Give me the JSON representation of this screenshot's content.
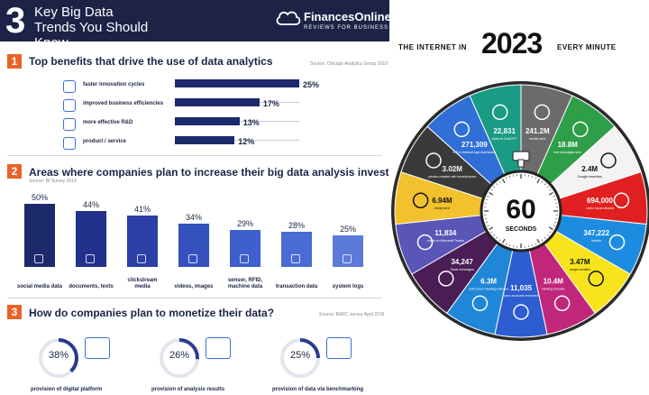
{
  "left": {
    "header": {
      "number": "3",
      "title": "Key Big Data Trends You Should Know"
    },
    "logo": {
      "name": "FinancesOnline",
      "tagline": "REVIEWS FOR BUSINESS"
    },
    "section1": {
      "num": "1",
      "title": "Top benefits that drive the use of data analytics",
      "source": "Source: Chicago Analytics Group 2019",
      "items": [
        {
          "label": "faster innovation cycles",
          "value": 25,
          "value_text": "25%",
          "icon": "cycle-icon"
        },
        {
          "label": "improved business efficiencies",
          "value": 17,
          "value_text": "17%",
          "icon": "gauge-icon"
        },
        {
          "label": "more effective R&D",
          "value": 13,
          "value_text": "13%",
          "icon": "flask-icon"
        },
        {
          "label": "product / service",
          "value": 12,
          "value_text": "12%",
          "icon": "target-icon"
        }
      ]
    },
    "section2": {
      "num": "2",
      "title": "Areas where companies plan to increase their big data analysis investment",
      "source": "Source: BI Survey 2019",
      "items": [
        {
          "label": "social media data",
          "value": 50,
          "value_text": "50%",
          "color": "#1c2a6b",
          "icon": "social-icon"
        },
        {
          "label": "documents, texts",
          "value": 44,
          "value_text": "44%",
          "color": "#22318a",
          "icon": "document-icon"
        },
        {
          "label": "clickstream media",
          "value": 41,
          "value_text": "41%",
          "color": "#2b3fa6",
          "icon": "cursor-icon"
        },
        {
          "label": "videos, images",
          "value": 34,
          "value_text": "34%",
          "color": "#3451bd",
          "icon": "video-icon"
        },
        {
          "label": "sensor, RFID, machine data",
          "value": 29,
          "value_text": "29%",
          "color": "#3e5fcc",
          "icon": "sensor-icon"
        },
        {
          "label": "transaction data",
          "value": 28,
          "value_text": "28%",
          "color": "#4a6bd4",
          "icon": "cart-icon"
        },
        {
          "label": "system logs",
          "value": 25,
          "value_text": "25%",
          "color": "#5b7ad9",
          "icon": "log-icon"
        }
      ]
    },
    "section3": {
      "num": "3",
      "title": "How do companies plan to monetize their data?",
      "source": "Source: BARC survey April 2019",
      "items": [
        {
          "label": "provision of digital platform",
          "value": 38,
          "value_text": "38%",
          "icon": "platform-icon"
        },
        {
          "label": "provision of analysis results",
          "value": 26,
          "value_text": "26%",
          "icon": "analysis-icon"
        },
        {
          "label": "provision of data via benchmarking",
          "value": 25,
          "value_text": "25%",
          "icon": "benchmark-icon"
        }
      ]
    },
    "colors": {
      "navy": "#1c2347",
      "accent": "#e8632a",
      "bar": "#1c2a6b",
      "donut": "#2a3b8f"
    }
  },
  "right": {
    "title_a": "THE INTERNET IN",
    "title_year": "2023",
    "title_b": "EVERY MINUTE",
    "center_value": "60",
    "center_label": "SECONDS",
    "segments": [
      {
        "value": "241.2M",
        "label": "emails sent",
        "color": "#6b6b6b",
        "icon": "mail-icon"
      },
      {
        "value": "18.8M",
        "label": "text messages sent",
        "color": "#2e9e48",
        "icon": "chat-icon"
      },
      {
        "value": "2.4M",
        "label": "Google searches",
        "color": "#f3f3f3",
        "icon": "google-icon"
      },
      {
        "value": "694,000",
        "label": "video hours viewed",
        "color": "#e02020",
        "icon": "youtube-icon"
      },
      {
        "value": "347,222",
        "label": "tweets",
        "color": "#1d8ce0",
        "icon": "twitter-icon"
      },
      {
        "value": "3.47M",
        "label": "snaps created",
        "color": "#f7e31b",
        "icon": "snapchat-icon"
      },
      {
        "value": "10.4M",
        "label": "viewing minutes",
        "color": "#c0267a",
        "icon": "instagram-icon"
      },
      {
        "value": "11,035",
        "label": "face accounts removed",
        "color": "#2d5dd0",
        "icon": "facebook-icon"
      },
      {
        "value": "6.3M",
        "label": "solo Zoom meeting minutes",
        "color": "#1f86d8",
        "icon": "zoom-icon"
      },
      {
        "value": "34,247",
        "label": "Slack messages",
        "color": "#4a1d55",
        "icon": "slack-icon"
      },
      {
        "value": "11,834",
        "label": "chats on Microsoft Teams",
        "color": "#5a56b8",
        "icon": "teams-icon"
      },
      {
        "value": "6.94M",
        "label": "emoji sent",
        "color": "#f2c12e",
        "icon": "emoji-icon"
      },
      {
        "value": "3.02M",
        "label": "photos created with smartphones",
        "color": "#3a3a3a",
        "icon": "camera-icon"
      },
      {
        "value": "271,309",
        "label": "iOS & Android app downloads",
        "color": "#2f6fd6",
        "icon": "appstore-icon"
      },
      {
        "value": "22,831",
        "label": "visits to ChatGPT",
        "color": "#1a9b83",
        "icon": "chatgpt-icon"
      }
    ]
  }
}
